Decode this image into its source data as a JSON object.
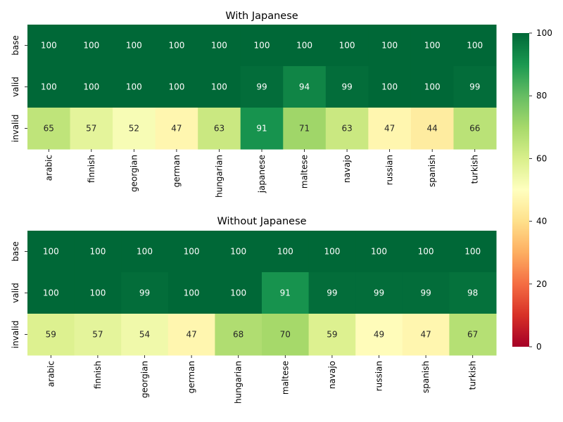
{
  "chart_data": [
    {
      "type": "heatmap",
      "title": "With Japanese",
      "rows": [
        "base",
        "valid",
        "invalid"
      ],
      "columns": [
        "arabic",
        "finnish",
        "georgian",
        "german",
        "hungarian",
        "japanese",
        "maltese",
        "navajo",
        "russian",
        "spanish",
        "turkish"
      ],
      "values": [
        [
          100,
          100,
          100,
          100,
          100,
          100,
          100,
          100,
          100,
          100,
          100
        ],
        [
          100,
          100,
          100,
          100,
          100,
          99,
          94,
          99,
          100,
          100,
          99
        ],
        [
          65,
          57,
          52,
          47,
          63,
          91,
          71,
          63,
          47,
          44,
          66
        ]
      ]
    },
    {
      "type": "heatmap",
      "title": "Without Japanese",
      "rows": [
        "base",
        "valid",
        "invalid"
      ],
      "columns": [
        "arabic",
        "finnish",
        "georgian",
        "german",
        "hungarian",
        "maltese",
        "navajo",
        "russian",
        "spanish",
        "turkish"
      ],
      "values": [
        [
          100,
          100,
          100,
          100,
          100,
          100,
          100,
          100,
          100,
          100
        ],
        [
          100,
          100,
          99,
          100,
          100,
          91,
          99,
          99,
          99,
          98
        ],
        [
          59,
          57,
          54,
          47,
          68,
          70,
          59,
          49,
          47,
          67
        ]
      ]
    }
  ],
  "colorbar": {
    "colormap": "RdYlGn",
    "vmin": 0,
    "vmax": 100,
    "ticks": [
      0,
      20,
      40,
      60,
      80,
      100
    ]
  }
}
